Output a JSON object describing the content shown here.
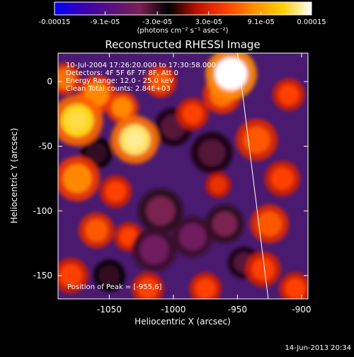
{
  "colorbar": {
    "tick_labels": [
      "-0.00015",
      "-9.1e-05",
      "-3.0e-05",
      "3.0e-05",
      "9.1e-05",
      "0.00015"
    ],
    "units": "(photons cm⁻² s⁻¹ asec⁻²)",
    "range": [
      -0.00015,
      0.00015
    ],
    "colors": [
      "#0000ff",
      "#3a00b0",
      "#5a1080",
      "#7a2050",
      "#000000",
      "#c01000",
      "#ff4000",
      "#ff9000",
      "#ffd000",
      "#ffffff"
    ]
  },
  "footer": {
    "timestamp": "14-Jun-2013 20:34"
  },
  "chart_data": {
    "type": "heatmap",
    "title": "Reconstructed RHESSI Image",
    "xlabel": "Heliocentric X (arcsec)",
    "ylabel": "Heliocentric Y (arcsec)",
    "xlim": [
      -1090,
      -895
    ],
    "ylim": [
      -168,
      22
    ],
    "xticks": [
      -1050,
      -1000,
      -950,
      -900
    ],
    "yticks": [
      0,
      -50,
      -100,
      -150
    ],
    "annotations": [
      "10-Jul-2004 17:26:20.000 to 17:30:58.000",
      "Detectors: 4F 5F 6F 7F 8F, Att 0",
      "Energy Range: 12.0 - 25.0 keV",
      "Clean    Total counts: 2.84E+03"
    ],
    "peak_label": "Position of Peak = [-955,6]",
    "limb_line": {
      "x": [
        -950,
        -926
      ],
      "y": [
        22,
        -168
      ]
    },
    "blobs": [
      {
        "x": -955,
        "y": 6,
        "r": 16,
        "v": 0.00015
      },
      {
        "x": -962,
        "y": -10,
        "r": 12,
        "v": 7e-05
      },
      {
        "x": -1075,
        "y": -30,
        "r": 16,
        "v": 0.00012
      },
      {
        "x": -1030,
        "y": -45,
        "r": 15,
        "v": 0.00013
      },
      {
        "x": -1060,
        "y": -10,
        "r": 12,
        "v": 8e-05
      },
      {
        "x": -1085,
        "y": 2,
        "r": 10,
        "v": 7e-05
      },
      {
        "x": -1040,
        "y": -20,
        "r": 10,
        "v": 8e-05
      },
      {
        "x": -1010,
        "y": 0,
        "r": 10,
        "v": 6e-05
      },
      {
        "x": -985,
        "y": -25,
        "r": 10,
        "v": 5e-05
      },
      {
        "x": -1075,
        "y": -75,
        "r": 14,
        "v": 8e-05
      },
      {
        "x": -1045,
        "y": -85,
        "r": 10,
        "v": 5e-05
      },
      {
        "x": -1060,
        "y": -115,
        "r": 11,
        "v": 6e-05
      },
      {
        "x": -1035,
        "y": -120,
        "r": 9,
        "v": 5e-05
      },
      {
        "x": -1080,
        "y": -150,
        "r": 11,
        "v": 5e-05
      },
      {
        "x": -1020,
        "y": -160,
        "r": 10,
        "v": 5e-05
      },
      {
        "x": -975,
        "y": -160,
        "r": 10,
        "v": 5e-05
      },
      {
        "x": -935,
        "y": -45,
        "r": 13,
        "v": 6e-05
      },
      {
        "x": -910,
        "y": -10,
        "r": 10,
        "v": 5e-05
      },
      {
        "x": -915,
        "y": -75,
        "r": 11,
        "v": 5e-05
      },
      {
        "x": -925,
        "y": -110,
        "r": 12,
        "v": 6e-05
      },
      {
        "x": -930,
        "y": -145,
        "r": 11,
        "v": 5e-05
      },
      {
        "x": -905,
        "y": -160,
        "r": 10,
        "v": 5e-05
      },
      {
        "x": -965,
        "y": -80,
        "r": 8,
        "v": 4e-05
      },
      {
        "x": -1000,
        "y": -35,
        "r": 12,
        "v": -4e-05
      },
      {
        "x": -970,
        "y": -55,
        "r": 13,
        "v": -4e-05
      },
      {
        "x": -1010,
        "y": -100,
        "r": 14,
        "v": -5e-05
      },
      {
        "x": -1015,
        "y": -130,
        "r": 14,
        "v": -6e-05
      },
      {
        "x": -985,
        "y": -120,
        "r": 13,
        "v": -6e-05
      },
      {
        "x": -960,
        "y": -110,
        "r": 12,
        "v": -5e-05
      },
      {
        "x": -1060,
        "y": -55,
        "r": 10,
        "v": -3e-05
      },
      {
        "x": -945,
        "y": -140,
        "r": 10,
        "v": -4e-05
      },
      {
        "x": -1050,
        "y": -150,
        "r": 10,
        "v": -3e-05
      }
    ]
  }
}
